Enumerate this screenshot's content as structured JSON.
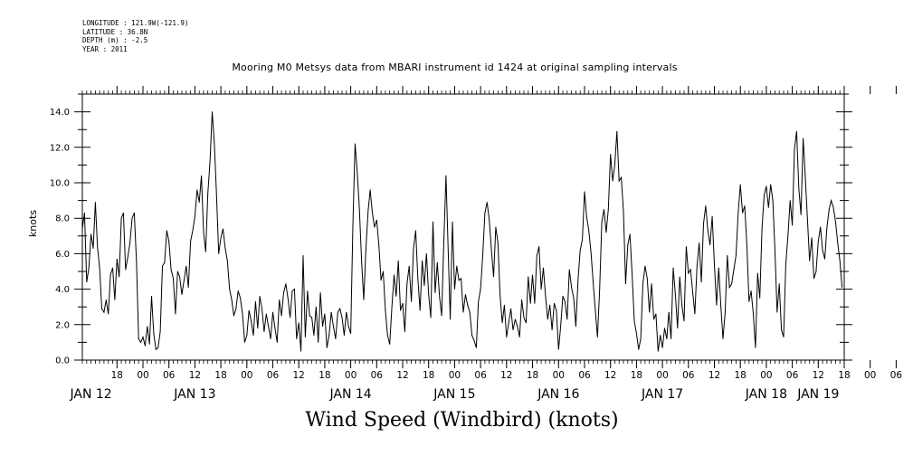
{
  "meta": {
    "longitude": "LONGITUDE : 121.9W(-121.9)",
    "latitude": "LATITUDE : 36.8N",
    "depth": "DEPTH (m) : -2.5",
    "year": "YEAR : 2011"
  },
  "title": "Mooring M0 Metsys data from MBARI instrument id 1424 at original sampling intervals",
  "bottom_title": "Wind Speed (Windbird) (knots)",
  "chart_data": {
    "type": "line",
    "title": "Mooring M0 Metsys data from MBARI instrument id 1424 at original sampling intervals",
    "ylabel": "knots",
    "xlabel": "Wind Speed (Windbird) (knots)",
    "ylim": [
      0,
      15
    ],
    "yticks": [
      "0.0",
      "2.0",
      "4.0",
      "6.0",
      "8.0",
      "10.0",
      "12.0",
      "14.0"
    ],
    "xlim": [
      "2011-01-12 10:00",
      "2011-01-19 18:00"
    ],
    "hour_tick_labels": [
      "18",
      "00",
      "06",
      "12",
      "18",
      "00",
      "06",
      "12",
      "18",
      "00",
      "06",
      "12",
      "18",
      "00",
      "06",
      "12",
      "18",
      "00",
      "06",
      "12",
      "18",
      "00",
      "06",
      "12",
      "18",
      "00",
      "06",
      "12",
      "18",
      "00",
      "06",
      "12",
      "18",
      "00",
      "06",
      "12",
      "18",
      "00",
      "06",
      "12",
      "18",
      "00",
      "06",
      "12"
    ],
    "day_labels": [
      "JAN 12",
      "JAN 13",
      "JAN 14",
      "JAN 15",
      "JAN 16",
      "JAN 17",
      "JAN 18",
      "JAN 19"
    ],
    "series": [
      {
        "hours_from_jan12_00": [
          10,
          10.5,
          11,
          11.5,
          12,
          12.5,
          13,
          13.5,
          14,
          14.5,
          15,
          15.5,
          16,
          16.5,
          17,
          17.5,
          18,
          18.5,
          19,
          19.5,
          20,
          20.5,
          21,
          21.5,
          22,
          22.5,
          23,
          23.5,
          24,
          24.5,
          25,
          25.5,
          26,
          26.5,
          27,
          27.5,
          28,
          28.5,
          29,
          29.5,
          30,
          30.5,
          31,
          31.5,
          32,
          32.5,
          33,
          33.5,
          34,
          34.5,
          35,
          35.5,
          36,
          36.5,
          37,
          37.5,
          38,
          38.5,
          39,
          39.5,
          40,
          40.5,
          41,
          41.5,
          42,
          42.5,
          43,
          43.5,
          44,
          44.5,
          45,
          45.5,
          46,
          46.5,
          47,
          47.5,
          48,
          48.5,
          49,
          49.5,
          50,
          50.5,
          51,
          51.5,
          52,
          52.5,
          53,
          53.5,
          54,
          54.5,
          55,
          55.5,
          56,
          56.5,
          57,
          57.5,
          58,
          58.5,
          59,
          59.5,
          60,
          60.5,
          61,
          61.5,
          62,
          62.5,
          63,
          63.5,
          64,
          64.5,
          65,
          65.5,
          66,
          66.5,
          67,
          67.5,
          68,
          68.5,
          69,
          69.5,
          70,
          70.5,
          71,
          71.5,
          72,
          72.5,
          73,
          73.5,
          74,
          74.5,
          75,
          75.5,
          76,
          76.5,
          77,
          77.5,
          78,
          78.5,
          79,
          79.5,
          80,
          80.5,
          81,
          81.5,
          82,
          82.5,
          83,
          83.5,
          84,
          84.5,
          85,
          85.5,
          86,
          86.5,
          87,
          87.5,
          88,
          88.5,
          89,
          89.5,
          90,
          90.5,
          91,
          91.5,
          92,
          92.5,
          93,
          93.5,
          94,
          94.5,
          95,
          95.5,
          96,
          96.5,
          97,
          97.5,
          98,
          98.5,
          99,
          99.5,
          100,
          100.5,
          101,
          101.5,
          102,
          102.5,
          103,
          103.5,
          104,
          104.5,
          105,
          105.5,
          106,
          106.5,
          107,
          107.5,
          108,
          108.5,
          109,
          109.5,
          110,
          110.5,
          111,
          111.5,
          112,
          112.5,
          113,
          113.5,
          114,
          114.5,
          115,
          115.5,
          116,
          116.5,
          117,
          117.5,
          118,
          118.5,
          119,
          119.5,
          120,
          120.5,
          121,
          121.5,
          122,
          122.5,
          123,
          123.5,
          124,
          124.5,
          125,
          125.5,
          126,
          126.5,
          127,
          127.5,
          128,
          128.5,
          129,
          129.5,
          130,
          130.5,
          131,
          131.5,
          132,
          132.5,
          133,
          133.5,
          134,
          134.5,
          135,
          135.5,
          136,
          136.5,
          137,
          137.5,
          138,
          138.5,
          139,
          139.5,
          140,
          140.5,
          141,
          141.5,
          142,
          142.5,
          143,
          143.5,
          144,
          144.5,
          145,
          145.5,
          146,
          146.5,
          147,
          147.5,
          148,
          148.5,
          149,
          149.5,
          150,
          150.5,
          151,
          151.5,
          152,
          152.5,
          153,
          153.5,
          154,
          154.5,
          155,
          155.5,
          156,
          156.5,
          157,
          157.5,
          158,
          158.5,
          159,
          159.5,
          160,
          160.5,
          161,
          161.5,
          162,
          162.5,
          163,
          163.5,
          164,
          164.5,
          165,
          165.5,
          166,
          166.5,
          167,
          167.5,
          168,
          168.5,
          169,
          169.5,
          170,
          170.5,
          171,
          171.5,
          172,
          172.5,
          173,
          173.5,
          174,
          174.5,
          175,
          175.5,
          176,
          176.5,
          177,
          177.5,
          178,
          178.5,
          179,
          179.5,
          180,
          180.5,
          181,
          181.5,
          182,
          182.5,
          183,
          183.5,
          184,
          184.5,
          185,
          185.5
        ],
        "values": [
          7.4,
          8.3,
          4.4,
          5.2,
          7.1,
          6.3,
          8.9,
          6.4,
          5.2,
          2.9,
          2.7,
          3.4,
          2.6,
          4.8,
          5.2,
          3.4,
          5.7,
          4.7,
          8.0,
          8.3,
          5.1,
          5.8,
          6.6,
          8.0,
          8.3,
          5.6,
          1.2,
          1.0,
          1.3,
          0.8,
          1.9,
          0.9,
          3.6,
          1.5,
          0.6,
          0.7,
          1.6,
          5.3,
          5.5,
          7.3,
          6.7,
          5.1,
          4.6,
          2.6,
          5.0,
          4.7,
          3.7,
          4.5,
          5.3,
          4.1,
          6.7,
          7.3,
          8.1,
          9.6,
          8.9,
          10.4,
          7.2,
          6.1,
          9.4,
          11.2,
          14.0,
          12.2,
          9.3,
          6.0,
          6.9,
          7.4,
          6.3,
          5.6,
          4.0,
          3.4,
          2.5,
          2.9,
          3.9,
          3.5,
          2.6,
          1.0,
          1.4,
          2.8,
          2.2,
          1.4,
          3.3,
          1.8,
          3.6,
          2.9,
          1.6,
          2.6,
          1.9,
          1.2,
          2.7,
          1.8,
          1.0,
          3.4,
          2.5,
          3.8,
          4.3,
          3.5,
          2.4,
          3.9,
          4.0,
          1.2,
          2.1,
          0.5,
          5.9,
          1.3,
          3.9,
          2.5,
          2.4,
          1.4,
          3.0,
          1.0,
          3.8,
          1.9,
          2.6,
          0.7,
          1.4,
          2.7,
          1.9,
          1.2,
          2.7,
          2.9,
          2.4,
          1.4,
          2.7,
          1.9,
          1.5,
          7.6,
          12.2,
          10.6,
          8.5,
          5.6,
          3.4,
          6.3,
          8.4,
          9.6,
          8.3,
          7.5,
          7.9,
          6.5,
          4.5,
          5.0,
          2.8,
          1.4,
          0.9,
          3.0,
          4.8,
          3.6,
          5.6,
          2.8,
          3.2,
          1.6,
          4.3,
          5.3,
          3.3,
          6.3,
          7.3,
          4.6,
          2.8,
          5.6,
          4.2,
          6.0,
          3.7,
          2.4,
          7.8,
          3.8,
          5.5,
          3.6,
          2.5,
          6.7,
          10.4,
          6.2,
          2.3,
          7.8,
          4.0,
          5.3,
          4.5,
          4.6,
          2.7,
          3.7,
          3.1,
          2.7,
          1.4,
          1.1,
          0.7,
          3.3,
          4.0,
          5.9,
          8.3,
          8.9,
          7.9,
          6.2,
          4.7,
          7.5,
          6.6,
          3.6,
          2.1,
          3.1,
          1.3,
          2.1,
          2.9,
          1.7,
          2.3,
          1.9,
          1.3,
          3.4,
          2.4,
          2.1,
          4.7,
          3.2,
          4.8,
          3.2,
          5.9,
          6.4,
          4.0,
          5.2,
          3.6,
          2.3,
          3.1,
          1.7,
          3.2,
          2.8,
          0.6,
          1.9,
          3.6,
          3.3,
          2.3,
          5.1,
          4.1,
          3.5,
          1.9,
          4.5,
          6.2,
          6.8,
          9.5,
          8.1,
          7.3,
          6.1,
          4.4,
          2.8,
          1.3,
          4.0,
          7.8,
          8.5,
          7.2,
          8.5,
          11.6,
          10.1,
          11.0,
          12.9,
          10.1,
          10.3,
          8.4,
          4.3,
          6.5,
          7.1,
          4.8,
          2.2,
          1.5,
          0.6,
          1.2,
          4.3,
          5.3,
          4.6,
          2.7,
          4.3,
          2.3,
          2.6,
          0.5,
          1.4,
          0.7,
          1.8,
          1.2,
          2.7,
          1.2,
          5.2,
          3.7,
          1.8,
          4.7,
          3.1,
          2.2,
          6.4,
          4.9,
          5.1,
          3.8,
          2.6,
          5.3,
          6.6,
          4.4,
          7.7,
          8.7,
          7.3,
          6.5,
          8.1,
          5.4,
          3.1,
          5.2,
          3.0,
          1.2,
          2.7,
          5.9,
          4.1,
          4.3,
          5.1,
          5.9,
          8.3,
          9.9,
          8.3,
          8.7,
          6.5,
          3.3,
          3.9,
          2.6,
          0.7,
          4.9,
          3.5,
          7.4,
          9.3,
          9.8,
          8.6,
          9.9,
          9.0,
          6.1,
          2.7,
          4.3,
          1.7,
          1.3,
          5.4,
          7.0,
          9.0,
          7.6,
          11.9,
          12.9,
          9.7,
          8.2,
          12.5,
          10.4,
          8.0,
          5.6,
          6.9,
          4.6,
          5.0,
          6.7,
          7.5,
          6.2,
          5.7,
          7.5,
          8.5,
          9.0,
          8.6,
          7.8,
          6.6,
          5.6,
          4.1,
          5.3,
          4.6,
          4.3,
          3.7,
          2.6,
          6.0,
          4.1,
          3.4,
          4.9,
          6.8,
          7.0,
          4.6,
          1.4,
          2.5,
          1.1,
          3.8,
          5.1,
          5.7,
          3.5,
          5.6,
          3.6,
          6.4,
          4.3,
          8.9,
          5.6,
          2.5,
          4.1,
          4.8,
          3.7,
          2.2,
          1.8,
          2.6,
          3.2,
          1.9,
          0.6,
          5.3,
          1.2,
          6.9,
          6.4,
          6.9,
          2.3,
          4.0,
          3.7,
          4.2,
          5.9,
          4.0,
          3.3,
          2.0,
          2.7,
          5.5
        ]
      }
    ]
  }
}
